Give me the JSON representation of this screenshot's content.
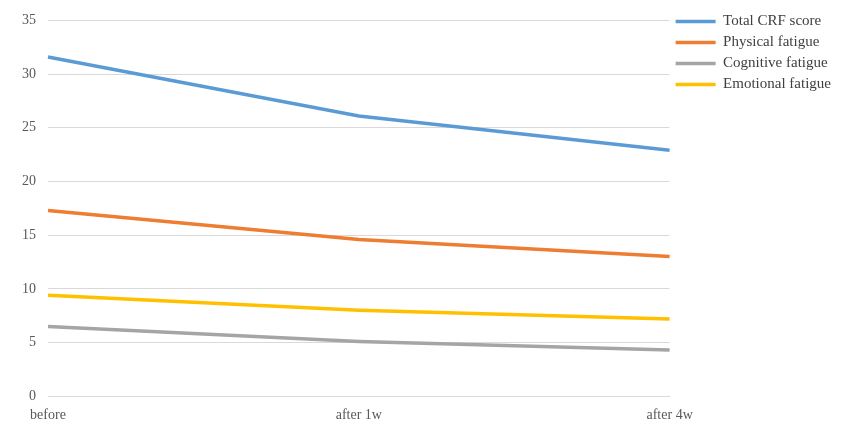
{
  "chart_data": {
    "type": "line",
    "categories": [
      "before",
      "after 1w",
      "after 4w"
    ],
    "series": [
      {
        "name": "Total CRF score",
        "color": "#5b9bd5",
        "values": [
          31.6,
          26.1,
          22.9
        ]
      },
      {
        "name": "Physical fatigue",
        "color": "#ed7d31",
        "values": [
          17.3,
          14.6,
          13.0
        ]
      },
      {
        "name": "Cognitive fatigue",
        "color": "#a5a5a5",
        "values": [
          6.5,
          5.1,
          4.3
        ]
      },
      {
        "name": "Emotional fatigue",
        "color": "#ffc000",
        "values": [
          9.4,
          8.0,
          7.2
        ]
      }
    ],
    "ylim": [
      0,
      35
    ],
    "yticks": [
      0,
      5,
      10,
      15,
      20,
      25,
      30,
      35
    ],
    "grid": true,
    "legend": "top-right"
  }
}
